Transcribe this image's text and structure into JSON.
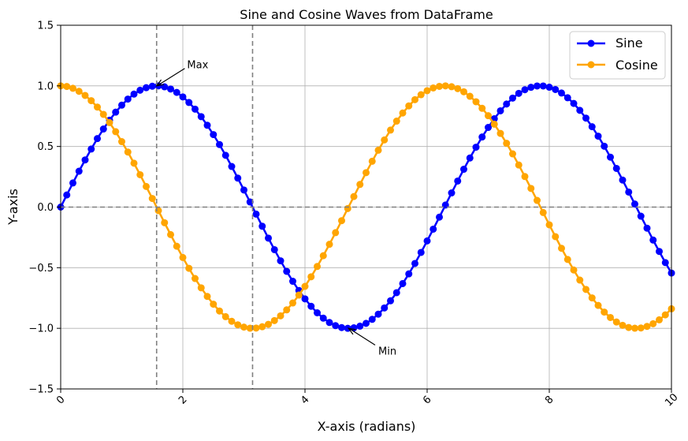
{
  "chart_data": {
    "type": "line",
    "title": "Sine and Cosine Waves from DataFrame",
    "xlabel": "X-axis (radians)",
    "ylabel": "Y-axis",
    "xlim": [
      0,
      10
    ],
    "ylim": [
      -1.5,
      1.5
    ],
    "x_ticks": [
      "0",
      "2",
      "4",
      "6",
      "8",
      "10"
    ],
    "y_ticks": [
      "−1.5",
      "−1.0",
      "−0.5",
      "0.0",
      "0.5",
      "1.0",
      "1.5"
    ],
    "grid": true,
    "legend": "top-right",
    "x": [
      0.0,
      0.1,
      0.2,
      0.3,
      0.4,
      0.5,
      0.6,
      0.7,
      0.8,
      0.9,
      1.0,
      1.1,
      1.2,
      1.3,
      1.4,
      1.5,
      1.6,
      1.7,
      1.8,
      1.9,
      2.0,
      2.1,
      2.2,
      2.3,
      2.4,
      2.5,
      2.6,
      2.7,
      2.8,
      2.9,
      3.0,
      3.1,
      3.2,
      3.3,
      3.4,
      3.5,
      3.6,
      3.7,
      3.8,
      3.9,
      4.0,
      4.1,
      4.2,
      4.3,
      4.4,
      4.5,
      4.6,
      4.7,
      4.8,
      4.9,
      5.0,
      5.1,
      5.2,
      5.3,
      5.4,
      5.5,
      5.6,
      5.7,
      5.8,
      5.9,
      6.0,
      6.1,
      6.2,
      6.3,
      6.4,
      6.5,
      6.6,
      6.7,
      6.8,
      6.9,
      7.0,
      7.1,
      7.2,
      7.3,
      7.4,
      7.5,
      7.6,
      7.7,
      7.8,
      7.9,
      8.0,
      8.1,
      8.2,
      8.3,
      8.4,
      8.5,
      8.6,
      8.7,
      8.8,
      8.9,
      9.0,
      9.1,
      9.2,
      9.3,
      9.4,
      9.5,
      9.6,
      9.7,
      9.8,
      9.9,
      10.0
    ],
    "series": [
      {
        "name": "Sine",
        "color": "#0000ff",
        "values": [
          0.0,
          0.1,
          0.199,
          0.296,
          0.389,
          0.479,
          0.565,
          0.644,
          0.717,
          0.783,
          0.841,
          0.891,
          0.932,
          0.964,
          0.985,
          0.997,
          1.0,
          0.992,
          0.974,
          0.946,
          0.909,
          0.863,
          0.808,
          0.746,
          0.675,
          0.598,
          0.516,
          0.427,
          0.335,
          0.239,
          0.141,
          0.042,
          -0.058,
          -0.158,
          -0.256,
          -0.351,
          -0.443,
          -0.53,
          -0.612,
          -0.688,
          -0.757,
          -0.818,
          -0.872,
          -0.916,
          -0.952,
          -0.978,
          -0.994,
          -1.0,
          -0.996,
          -0.982,
          -0.959,
          -0.926,
          -0.883,
          -0.832,
          -0.773,
          -0.706,
          -0.631,
          -0.551,
          -0.465,
          -0.374,
          -0.279,
          -0.182,
          -0.083,
          0.017,
          0.117,
          0.215,
          0.312,
          0.405,
          0.494,
          0.578,
          0.657,
          0.729,
          0.794,
          0.85,
          0.899,
          0.938,
          0.968,
          0.988,
          0.999,
          0.999,
          0.989,
          0.97,
          0.941,
          0.902,
          0.855,
          0.798,
          0.734,
          0.663,
          0.585,
          0.502,
          0.412,
          0.319,
          0.223,
          0.124,
          0.025,
          -0.075,
          -0.174,
          -0.272,
          -0.366,
          -0.458,
          -0.544
        ]
      },
      {
        "name": "Cosine",
        "color": "#ffa500",
        "values": [
          1.0,
          0.995,
          0.98,
          0.955,
          0.921,
          0.878,
          0.825,
          0.765,
          0.697,
          0.622,
          0.54,
          0.454,
          0.362,
          0.267,
          0.17,
          0.071,
          -0.029,
          -0.129,
          -0.227,
          -0.323,
          -0.416,
          -0.505,
          -0.589,
          -0.666,
          -0.737,
          -0.801,
          -0.857,
          -0.904,
          -0.942,
          -0.971,
          -0.99,
          -0.999,
          -0.998,
          -0.987,
          -0.967,
          -0.936,
          -0.897,
          -0.848,
          -0.791,
          -0.726,
          -0.654,
          -0.575,
          -0.49,
          -0.401,
          -0.307,
          -0.211,
          -0.112,
          -0.012,
          0.087,
          0.187,
          0.284,
          0.378,
          0.469,
          0.554,
          0.635,
          0.709,
          0.776,
          0.835,
          0.886,
          0.927,
          0.96,
          0.983,
          0.996,
          1.0,
          0.993,
          0.977,
          0.951,
          0.914,
          0.869,
          0.815,
          0.754,
          0.684,
          0.608,
          0.526,
          0.439,
          0.347,
          0.252,
          0.154,
          0.055,
          -0.045,
          -0.146,
          -0.244,
          -0.34,
          -0.432,
          -0.519,
          -0.602,
          -0.679,
          -0.749,
          -0.811,
          -0.866,
          -0.911,
          -0.948,
          -0.975,
          -0.993,
          -0.999,
          -0.997,
          -0.984,
          -0.962,
          -0.93,
          -0.889,
          -0.839
        ]
      }
    ],
    "reference_lines": {
      "horizontal": [
        0
      ],
      "vertical": [
        1.5708,
        3.1416
      ]
    },
    "annotations": [
      {
        "text": "Max",
        "point": [
          1.5708,
          1.0
        ],
        "text_pos": [
          2.07,
          1.17
        ]
      },
      {
        "text": "Min",
        "point": [
          4.7124,
          -1.0
        ],
        "text_pos": [
          5.2,
          -1.19
        ]
      }
    ]
  }
}
